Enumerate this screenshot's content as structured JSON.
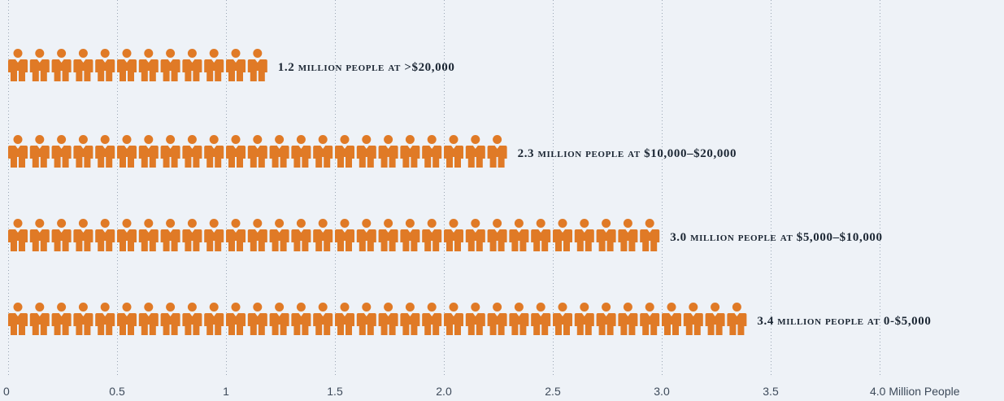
{
  "chart_data": {
    "type": "bar",
    "orientation": "horizontal",
    "unit_per_icon_millions": 0.1,
    "xlim": [
      0,
      4.0
    ],
    "x_ticks": [
      0,
      0.5,
      1,
      1.5,
      2.0,
      2.5,
      3.0,
      3.5,
      4.0
    ],
    "x_tick_labels": [
      "0",
      "0.5",
      "1",
      "1.5",
      "2.0",
      "2.5",
      "3.0",
      "3.5",
      "4.0 Million People"
    ],
    "grid": "vertical-dotted",
    "bars": [
      {
        "value": 1.2,
        "label": "1.2 million people at >$20,000"
      },
      {
        "value": 2.3,
        "label": "2.3 million people at $10,000–$20,000"
      },
      {
        "value": 3.0,
        "label": "3.0 million people at $5,000–$10,000"
      },
      {
        "value": 3.4,
        "label": "3.4 million people at 0-$5,000"
      }
    ],
    "colors": {
      "icon": "#e07a26",
      "background": "#eef2f7",
      "label": "#1b2633",
      "tick": "#3d4a5a",
      "grid": "#9aa6b4"
    },
    "icon_name": "person-icon"
  }
}
